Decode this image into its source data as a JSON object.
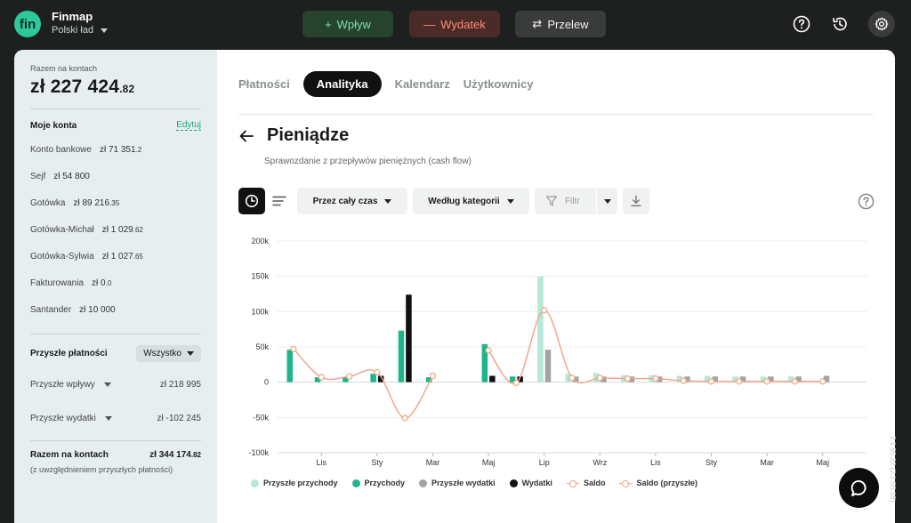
{
  "app": {
    "logo": "fin",
    "name": "Finmap",
    "workspace": "Polski ład"
  },
  "topbar": {
    "income_btn": "Wpływ",
    "income_sym": "+",
    "expense_btn": "Wydatek",
    "expense_sym": "—",
    "transfer_btn": "Przelew",
    "transfer_sym": "⇄"
  },
  "sidebar": {
    "total_label": "Razem na kontach",
    "total_main": "zł 227 424",
    "total_cents": ".82",
    "accounts_heading": "Moje konta",
    "edit_label": "Edytuj",
    "accounts": [
      {
        "name": "Konto bankowe",
        "value": "zł 71 351",
        "cents": ".2"
      },
      {
        "name": "Sejf",
        "value": "zł 54 800",
        "cents": ""
      },
      {
        "name": "Gotówka",
        "value": "zł 89 216",
        "cents": ".35"
      },
      {
        "name": "Gotówka-Michał",
        "value": "zł 1 029",
        "cents": ".62"
      },
      {
        "name": "Gotówka-Sylwia",
        "value": "zł 1 027",
        "cents": ".65"
      },
      {
        "name": "Fakturowania",
        "value": "zł 0",
        "cents": ".0"
      },
      {
        "name": "Santander",
        "value": "zł 10 000",
        "cents": ""
      }
    ],
    "future_heading": "Przyszłe płatności",
    "future_filter": "Wszystko",
    "future_income_label": "Przyszłe wpływy",
    "future_income_value": "zł 218 995",
    "future_expense_label": "Przyszłe wydatki",
    "future_expense_value": "zł -102 245",
    "total2_label": "Razem na kontach",
    "total2_main": "zł 344 174",
    "total2_cents": ".82",
    "total2_note": "(z uwzględnieniem przyszłych płatności)"
  },
  "tabs": [
    "Płatności",
    "Analityka",
    "Kalendarz",
    "Użytkownicy"
  ],
  "page": {
    "title": "Pieniądze",
    "subtitle": "Sprawozdanie z przepływów pieniężnych (cash flow)",
    "period_select": "Przez cały czas",
    "group_select": "Według kategorii",
    "filter_label": "Filtr"
  },
  "version": "2.1.55.22 (2.1.55.18)",
  "chart_data": {
    "type": "bar",
    "ylim": [
      -100000,
      200000
    ],
    "yticks": [
      "200k",
      "150k",
      "100k",
      "50k",
      "0",
      "-50k",
      "-100k"
    ],
    "x_tick_labels": [
      "Lis",
      "Sty",
      "Mar",
      "Maj",
      "Lip",
      "Wrz",
      "Lis",
      "Sty",
      "Mar",
      "Maj"
    ],
    "legend": [
      "Przyszłe przychody",
      "Przychody",
      "Przyszłe wydatki",
      "Wydatki",
      "Saldo",
      "Saldo (przyszłe)"
    ],
    "colors": {
      "future_income": "#b5e8d7",
      "income": "#1fb58a",
      "future_expense": "#a3a3a3",
      "expense": "#111111",
      "saldo": "#f2a185"
    },
    "grid": true,
    "series": [
      {
        "name": "Przychody",
        "values": [
          46000,
          7000,
          7000,
          12000,
          73000,
          7000,
          0,
          54000,
          8000,
          0,
          0,
          0,
          0,
          0,
          0,
          0,
          0,
          0,
          0,
          0
        ]
      },
      {
        "name": "Wydatki",
        "values": [
          0,
          0,
          0,
          9000,
          124000,
          0,
          0,
          9000,
          8000,
          0,
          0,
          0,
          0,
          0,
          0,
          0,
          0,
          0,
          0,
          0
        ]
      },
      {
        "name": "Przyszłe przychody",
        "values": [
          0,
          0,
          0,
          0,
          0,
          0,
          0,
          0,
          0,
          150000,
          12000,
          13000,
          10000,
          10000,
          9000,
          9000,
          8000,
          8000,
          8000,
          0
        ]
      },
      {
        "name": "Przyszłe wydatki",
        "values": [
          0,
          0,
          0,
          0,
          0,
          0,
          0,
          0,
          0,
          46000,
          8000,
          8000,
          8000,
          8000,
          8000,
          8000,
          8000,
          8000,
          8000,
          9000
        ]
      },
      {
        "name": "Saldo",
        "values": [
          47000,
          7000,
          8000,
          14000,
          -51000,
          9000,
          null,
          45000,
          -1000,
          102000,
          6000,
          6000,
          5000,
          5000,
          2000,
          1000,
          1000,
          1000,
          1000,
          1000
        ]
      }
    ]
  }
}
